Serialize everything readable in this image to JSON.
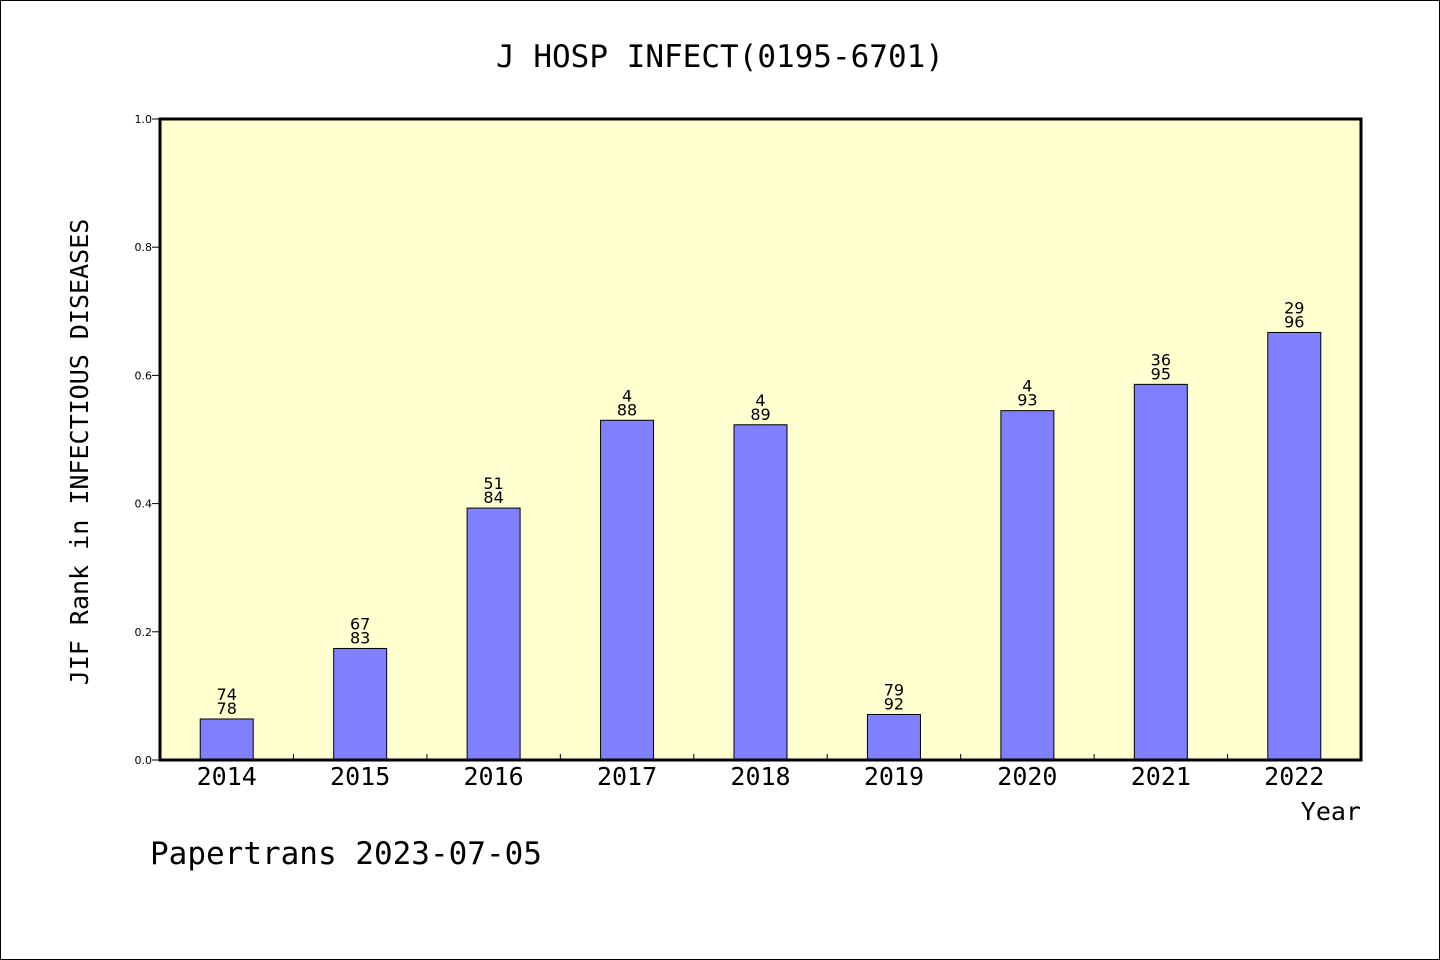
{
  "chart_data": {
    "type": "bar",
    "title": "J HOSP INFECT(0195-6701)",
    "xlabel": "Year",
    "ylabel": "JIF Rank in INFECTIOUS DISEASES",
    "ylim": [
      0,
      1.0
    ],
    "yticks": [
      "0.0",
      "0.2",
      "0.4",
      "0.6",
      "0.8",
      "1.0"
    ],
    "categories": [
      "2014",
      "2015",
      "2016",
      "2017",
      "2018",
      "2019",
      "2020",
      "2021",
      "2022"
    ],
    "values": [
      0.064,
      0.174,
      0.393,
      0.53,
      0.523,
      0.071,
      0.545,
      0.586,
      0.667
    ],
    "labels_top": [
      "74",
      "67",
      "51",
      "4",
      "4",
      "79",
      "4",
      "36",
      "29"
    ],
    "labels_bottom": [
      "78",
      "83",
      "84",
      "88",
      "89",
      "92",
      "93",
      "95",
      "96"
    ],
    "colors": {
      "plot_bg": "#ffffd0",
      "bar": "#8080ff",
      "bar_edge": "#000000"
    }
  },
  "footer": {
    "text": "Papertrans 2023-07-05"
  }
}
